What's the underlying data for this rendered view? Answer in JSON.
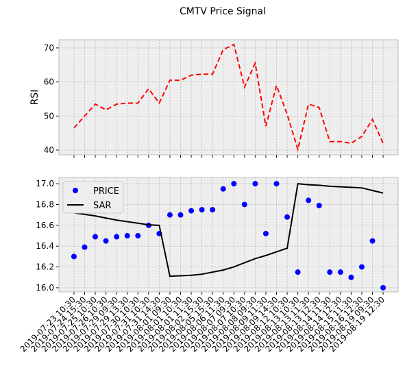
{
  "title": "CMTV Price Signal",
  "chart_data": [
    {
      "type": "line",
      "ylabel": "RSI",
      "categories": [
        "2019-07-23 10:30",
        "2019-07-24 15:30",
        "2019-07-25 10:30",
        "2019-07-26 10:30",
        "2019-07-29 09:30",
        "2019-07-29 13:30",
        "2019-07-30 10:30",
        "2019-07-31 10:30",
        "2019-07-31 14:30",
        "2019-08-01 09:30",
        "2019-08-01 10:30",
        "2019-08-01 11:30",
        "2019-08-02 15:30",
        "2019-08-05 15:30",
        "2019-08-06 11:30",
        "2019-08-07 09:30",
        "2019-08-07 10:30",
        "2019-08-08 09:30",
        "2019-08-09 11:30",
        "2019-08-09 14:30",
        "2019-08-12 10:30",
        "2019-08-13 10:30",
        "2019-08-13 11:30",
        "2019-08-13 12:30",
        "2019-08-14 11:30",
        "2019-08-14 12:30",
        "2019-08-15 11:30",
        "2019-08-16 12:30",
        "2019-08-19 09:30",
        "2019-08-19 12:30"
      ],
      "series": [
        {
          "name": "RSI",
          "color": "#ff0000",
          "values": [
            46.5,
            50,
            53.5,
            51.8,
            53.5,
            53.8,
            53.8,
            58,
            53.8,
            60.5,
            60.5,
            62,
            62.3,
            62.3,
            69.5,
            71,
            58.5,
            65.5,
            47,
            59,
            50.5,
            40.2,
            53.5,
            52.5,
            42.5,
            42.5,
            42,
            44,
            49,
            42
          ]
        }
      ],
      "ylim": [
        38.6,
        72.4
      ],
      "yticks": [
        40,
        50,
        60,
        70
      ],
      "grid": true
    },
    {
      "type": "line",
      "categories": [
        "2019-07-23 10:30",
        "2019-07-24 15:30",
        "2019-07-25 10:30",
        "2019-07-26 10:30",
        "2019-07-29 09:30",
        "2019-07-29 13:30",
        "2019-07-30 10:30",
        "2019-07-31 10:30",
        "2019-07-31 14:30",
        "2019-08-01 09:30",
        "2019-08-01 10:30",
        "2019-08-01 11:30",
        "2019-08-02 15:30",
        "2019-08-05 15:30",
        "2019-08-06 11:30",
        "2019-08-07 09:30",
        "2019-08-07 10:30",
        "2019-08-08 09:30",
        "2019-08-09 11:30",
        "2019-08-09 14:30",
        "2019-08-12 10:30",
        "2019-08-13 10:30",
        "2019-08-13 11:30",
        "2019-08-13 12:30",
        "2019-08-14 11:30",
        "2019-08-14 12:30",
        "2019-08-15 11:30",
        "2019-08-16 12:30",
        "2019-08-19 09:30",
        "2019-08-19 12:30"
      ],
      "series": [
        {
          "name": "PRICE",
          "color": "#0000ff",
          "marker": "o",
          "values": [
            16.3,
            16.39,
            16.49,
            16.45,
            16.49,
            16.5,
            16.5,
            16.6,
            16.52,
            16.7,
            16.7,
            16.74,
            16.75,
            16.75,
            16.95,
            17.0,
            16.8,
            17.0,
            16.52,
            17.0,
            16.68,
            16.15,
            16.84,
            16.79,
            16.15,
            16.15,
            16.1,
            16.2,
            16.45,
            16.0
          ]
        },
        {
          "name": "SAR",
          "color": "#000000",
          "values": [
            16.72,
            16.705,
            16.69,
            16.67,
            16.65,
            16.635,
            16.62,
            16.605,
            16.6,
            16.11,
            16.115,
            16.12,
            16.13,
            16.15,
            16.17,
            16.2,
            16.24,
            16.28,
            16.31,
            16.345,
            16.38,
            17.0,
            16.99,
            16.985,
            16.975,
            16.97,
            16.965,
            16.96,
            16.935,
            16.91
          ]
        }
      ],
      "ylim": [
        15.96,
        17.06
      ],
      "yticks": [
        {
          "value": 16.0,
          "label": "16.0"
        },
        {
          "value": 16.2,
          "label": "16.2"
        },
        {
          "value": 16.4,
          "label": "16.4"
        },
        {
          "value": 16.6,
          "label": "16.6"
        },
        {
          "value": 16.8,
          "label": "16.8"
        },
        {
          "value": 17.0,
          "label": "17.0"
        }
      ],
      "grid": true,
      "legend": "upper left"
    }
  ]
}
